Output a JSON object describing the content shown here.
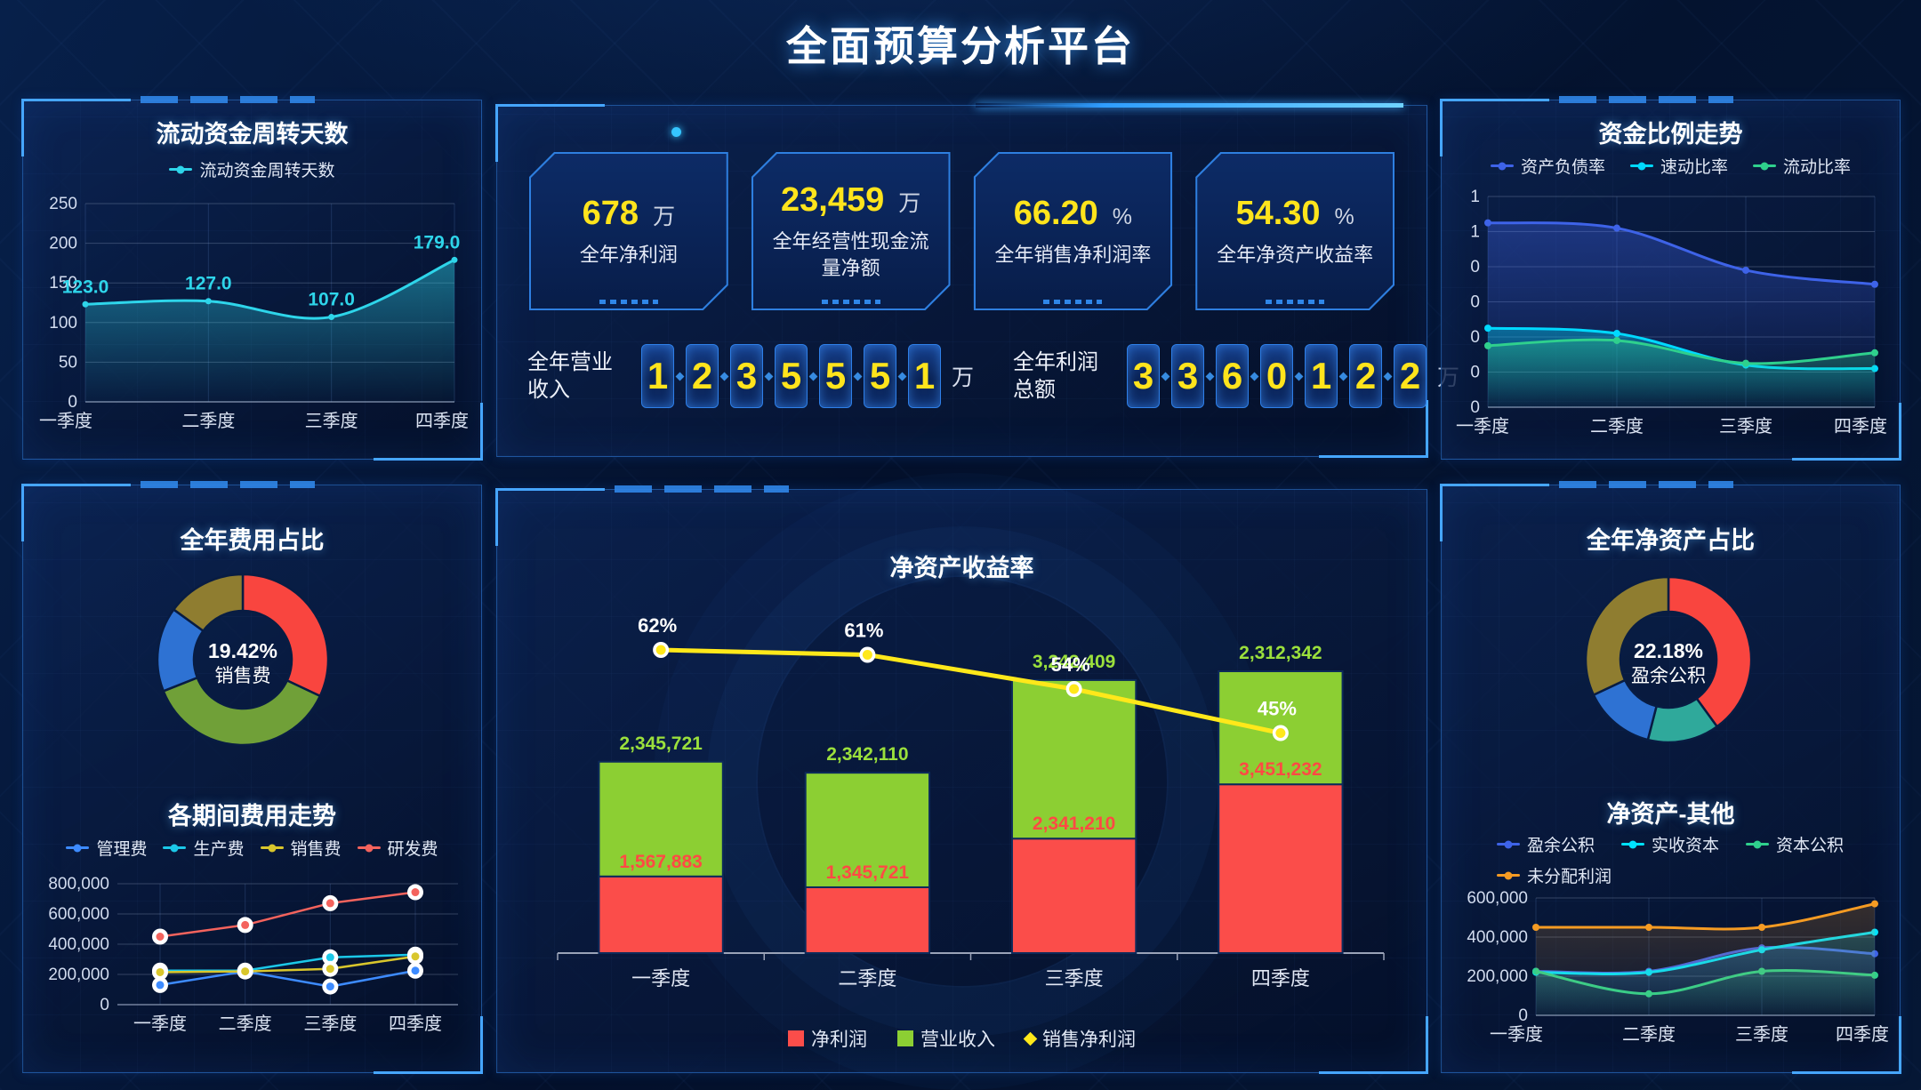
{
  "title": "全面预算分析平台",
  "kpi": {
    "cards": [
      {
        "value": "678",
        "unit": "万",
        "label": "全年净利润"
      },
      {
        "value": "23,459",
        "unit": "万",
        "label": "全年经营性现金流量净额"
      },
      {
        "value": "66.20",
        "unit": "%",
        "label": "全年销售净利润率"
      },
      {
        "value": "54.30",
        "unit": "%",
        "label": "全年净资产收益率"
      }
    ],
    "counters": [
      {
        "label": "全年营业收入",
        "digits": "1235551",
        "unit": "万"
      },
      {
        "label": "全年利润总额",
        "digits": "3360122",
        "unit": "万"
      }
    ]
  },
  "chart_data": [
    {
      "id": "wc",
      "type": "line",
      "title": "流动资金周转天数",
      "legend": [
        "流动资金周转天数"
      ],
      "categories": [
        "一季度",
        "二季度",
        "三季度",
        "四季度"
      ],
      "series": [
        {
          "name": "流动资金周转天数",
          "color": "#2ed5ea",
          "values": [
            123,
            127,
            107,
            179
          ],
          "labels": [
            "123.0",
            "127.0",
            "107.0",
            "179.0"
          ]
        }
      ],
      "ylim": [
        0,
        250
      ],
      "yticks": [
        {
          "v": 0,
          "label": "0"
        },
        {
          "v": 50,
          "label": "50"
        },
        {
          "v": 100,
          "label": "100"
        },
        {
          "v": 150,
          "label": "150"
        },
        {
          "v": 200,
          "label": "200"
        },
        {
          "v": 250,
          "label": "250"
        }
      ],
      "legend_position": "top",
      "grid": true
    },
    {
      "id": "fr",
      "type": "line",
      "title": "资金比例走势",
      "legend": [
        "资产负债率",
        "速动比率",
        "流动比率"
      ],
      "categories": [
        "一季度",
        "二季度",
        "三季度",
        "四季度"
      ],
      "series": [
        {
          "name": "资产负债率",
          "color": "#3e63e8",
          "values": [
            1.05,
            1.02,
            0.78,
            0.7
          ]
        },
        {
          "name": "速动比率",
          "color": "#00d9ff",
          "values": [
            0.45,
            0.42,
            0.24,
            0.22
          ]
        },
        {
          "name": "流动比率",
          "color": "#2fd08d",
          "values": [
            0.35,
            0.38,
            0.25,
            0.31
          ]
        }
      ],
      "ylim": [
        0,
        1.2
      ],
      "yticks": [
        {
          "v": 0,
          "label": "0"
        },
        {
          "v": 0.2,
          "label": "0"
        },
        {
          "v": 0.4,
          "label": "0"
        },
        {
          "v": 0.6,
          "label": "0"
        },
        {
          "v": 0.8,
          "label": "0"
        },
        {
          "v": 1.0,
          "label": "1"
        },
        {
          "v": 1.2,
          "label": "1"
        }
      ],
      "legend_position": "top",
      "grid": true
    },
    {
      "id": "es",
      "type": "pie",
      "title": "全年费用占比",
      "center_value": "19.42%",
      "center_label": "销售费",
      "slices": [
        {
          "value": 32,
          "color": "#f9453f"
        },
        {
          "value": 37,
          "color": "#70a038"
        },
        {
          "value": 16,
          "color": "#2e72d3"
        },
        {
          "value": 15,
          "color": "#8f7d30"
        }
      ]
    },
    {
      "id": "et",
      "type": "line",
      "title": "各期间费用走势",
      "legend": [
        "管理费",
        "生产费",
        "销售费",
        "研发费"
      ],
      "categories": [
        "一季度",
        "二季度",
        "三季度",
        "四季度"
      ],
      "series": [
        {
          "name": "管理费",
          "color": "#3d8bff",
          "values": [
            130000,
            220000,
            120000,
            225000
          ]
        },
        {
          "name": "生产费",
          "color": "#1bc8e8",
          "values": [
            225000,
            225000,
            313000,
            331000
          ]
        },
        {
          "name": "销售费",
          "color": "#d9c62c",
          "values": [
            215000,
            220000,
            237000,
            319000
          ]
        },
        {
          "name": "研发费",
          "color": "#f4635d",
          "values": [
            450000,
            527000,
            671000,
            744000
          ]
        }
      ],
      "ylim": [
        0,
        800000
      ],
      "yticks": [
        {
          "v": 0,
          "label": "0"
        },
        {
          "v": 200000,
          "label": "200,000"
        },
        {
          "v": 400000,
          "label": "400,000"
        },
        {
          "v": 600000,
          "label": "600,000"
        },
        {
          "v": 800000,
          "label": "800,000"
        }
      ],
      "legend_position": "top",
      "grid": true
    },
    {
      "id": "roe",
      "type": "bar",
      "title": "净资产收益率",
      "stacked": true,
      "legend": [
        "净利润",
        "营业收入",
        "销售净利润"
      ],
      "categories": [
        "一季度",
        "二季度",
        "三季度",
        "四季度"
      ],
      "bar_series": [
        {
          "name": "净利润",
          "color": "#fb4d4a",
          "label_color": "#ff4a44",
          "values": [
            1567883,
            1345721,
            2341210,
            3451232
          ],
          "labels": [
            "1,567,883",
            "1,345,721",
            "2,341,210",
            "3,451,232"
          ]
        },
        {
          "name": "营业收入",
          "color": "#8ccf33",
          "label_color": "#9be03c",
          "values": [
            2345721,
            2342110,
            3242409,
            2312342
          ],
          "labels": [
            "2,345,721",
            "2,342,110",
            "3,242,409",
            "2,312,342"
          ]
        }
      ],
      "line_series": {
        "name": "销售净利润",
        "color": "#ffe81a",
        "label_color": "#ffffff",
        "values": [
          62,
          61,
          54,
          45
        ],
        "labels": [
          "62%",
          "61%",
          "54%",
          "45%"
        ]
      },
      "ylim": [
        0,
        7000000
      ],
      "y2lim": [
        0,
        70
      ],
      "legend_position": "bottom"
    },
    {
      "id": "nas",
      "type": "pie",
      "title": "全年净资产占比",
      "center_value": "22.18%",
      "center_label": "盈余公积",
      "slices": [
        {
          "value": 40,
          "color": "#f9453f"
        },
        {
          "value": 14,
          "color": "#2fa99b"
        },
        {
          "value": 14,
          "color": "#2e72d3"
        },
        {
          "value": 32,
          "color": "#8f7d30"
        }
      ]
    },
    {
      "id": "nao",
      "type": "line",
      "title": "净资产-其他",
      "legend": [
        "盈余公积",
        "实收资本",
        "资本公积",
        "未分配利润"
      ],
      "categories": [
        "一季度",
        "二季度",
        "三季度",
        "四季度"
      ],
      "series": [
        {
          "name": "盈余公积",
          "color": "#3e63e8",
          "values": [
            225000,
            225000,
            345000,
            315000
          ]
        },
        {
          "name": "实收资本",
          "color": "#00e2ff",
          "values": [
            220000,
            220000,
            335000,
            425000
          ]
        },
        {
          "name": "资本公积",
          "color": "#2fd08d",
          "values": [
            225000,
            110000,
            225000,
            205000
          ]
        },
        {
          "name": "未分配利润",
          "color": "#f59b23",
          "values": [
            450000,
            450000,
            450000,
            570000
          ]
        }
      ],
      "ylim": [
        0,
        600000
      ],
      "yticks": [
        {
          "v": 0,
          "label": "0"
        },
        {
          "v": 200000,
          "label": "200,000"
        },
        {
          "v": 400000,
          "label": "400,000"
        },
        {
          "v": 600000,
          "label": "600,000"
        }
      ],
      "legend_position": "top",
      "grid": true
    }
  ]
}
